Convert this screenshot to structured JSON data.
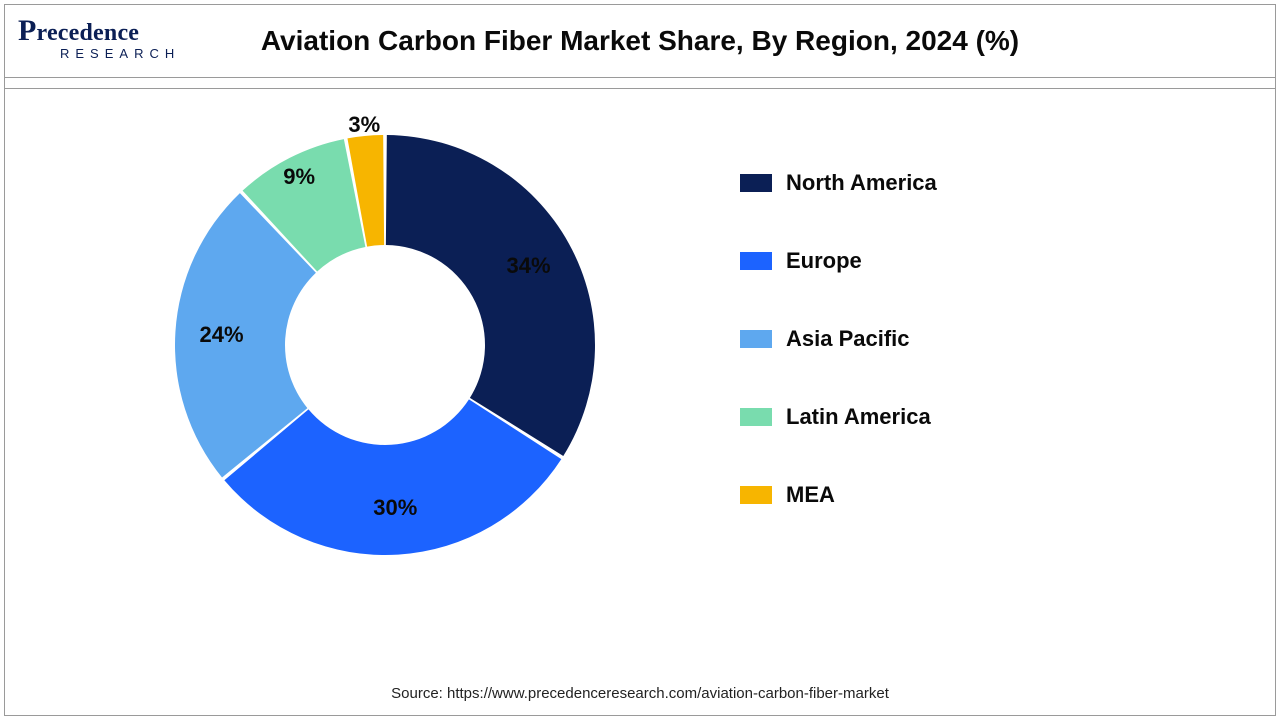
{
  "title": "Aviation Carbon Fiber Market Share, By Region, 2024 (%)",
  "logo": {
    "top": "Precedence",
    "bottom": "RESEARCH"
  },
  "source_line": "Source: https://www.precedenceresearch.com/aviation-carbon-fiber-market",
  "chart": {
    "type": "donut",
    "background_color": "#ffffff",
    "border_color": "#9a9a9a",
    "title_fontsize": 28,
    "label_fontsize": 22,
    "label_fontweight": 700,
    "legend_fontsize": 22,
    "legend_fontweight": 700,
    "outer_radius": 210,
    "inner_radius": 100,
    "start_angle_deg": 0,
    "slice_gap_deg": 1.0,
    "label_radius_ratio": 0.78,
    "slices": [
      {
        "key": "north_america",
        "label": "North America",
        "value": 34,
        "display": "34%",
        "color": "#0b1f55"
      },
      {
        "key": "europe",
        "label": "Europe",
        "value": 30,
        "display": "30%",
        "color": "#1c63ff"
      },
      {
        "key": "asia_pacific",
        "label": "Asia Pacific",
        "value": 24,
        "display": "24%",
        "color": "#5ea8ef"
      },
      {
        "key": "latin_america",
        "label": "Latin America",
        "value": 9,
        "display": "9%",
        "color": "#79dcae"
      },
      {
        "key": "mea",
        "label": "MEA",
        "value": 3,
        "display": "3%",
        "color": "#f7b500"
      }
    ],
    "label_overrides": {
      "mea": {
        "radius_ratio": 1.05
      },
      "latin_america": {
        "radius_ratio": 0.9
      }
    }
  }
}
